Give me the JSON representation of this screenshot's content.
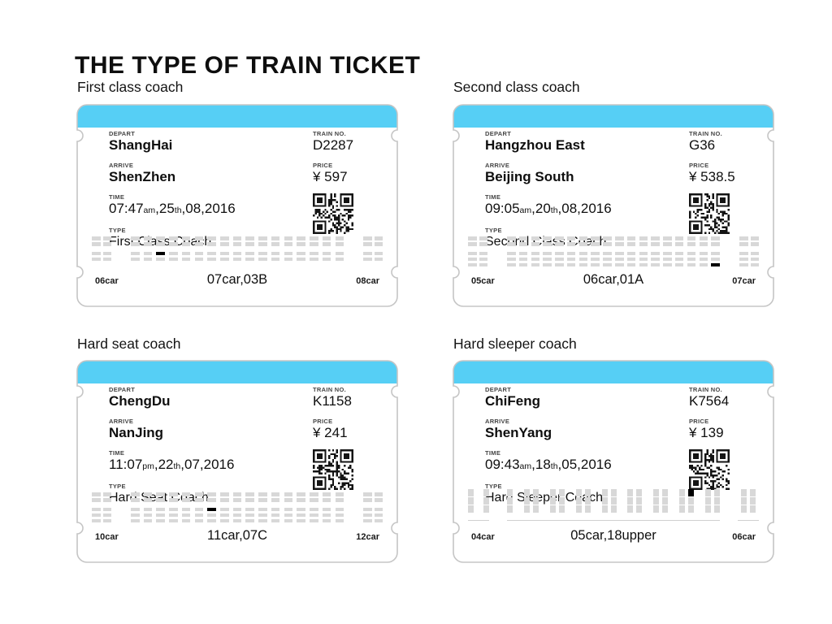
{
  "page_title": "THE TYPE OF TRAIN TICKET",
  "colors": {
    "header_blue": "#56cff5",
    "ticket_border": "#c5c5c5",
    "seat_gray": "#d8d8d8",
    "seat_selected": "#000000"
  },
  "field_labels": {
    "depart": "DEPART",
    "arrive": "ARRIVE",
    "time": "TIME",
    "type": "TYPE",
    "train_no": "TRAIN NO.",
    "price": "PRICE"
  },
  "tickets": [
    {
      "section_label": "First class coach",
      "depart": "ShangHai",
      "arrive": "ShenZhen",
      "train_no": "D2287",
      "price": "¥ 597",
      "type": "First Class Coach",
      "time_segments": [
        {
          "t": "07:47",
          "small": false
        },
        {
          "t": "am",
          "small": true
        },
        {
          "t": ",25",
          "small": false
        },
        {
          "t": "th",
          "small": true
        },
        {
          "t": ",08,2016",
          "small": false
        }
      ],
      "car_left": "06car",
      "car_center": "07car,03B",
      "car_right": "08car",
      "seatmap": {
        "kind": "seats",
        "top_rows": 2,
        "bottom_rows": 2,
        "main_cols": 17,
        "side_cols": 2,
        "selected": {
          "area": "bottom",
          "row": 0,
          "col": 2
        }
      }
    },
    {
      "section_label": "Second class coach",
      "depart": "Hangzhou East",
      "arrive": "Beijing South",
      "train_no": "G36",
      "price": "¥ 538.5",
      "type": "Second Class Coach",
      "time_segments": [
        {
          "t": "09:05",
          "small": false
        },
        {
          "t": "am",
          "small": true
        },
        {
          "t": ",20",
          "small": false
        },
        {
          "t": "th",
          "small": true
        },
        {
          "t": ",08,2016",
          "small": false
        }
      ],
      "car_left": "05car",
      "car_center": "06car,01A",
      "car_right": "07car",
      "seatmap": {
        "kind": "seats",
        "top_rows": 2,
        "bottom_rows": 3,
        "main_cols": 18,
        "side_cols": 2,
        "selected": {
          "area": "bottom",
          "row": 2,
          "col": 17
        }
      }
    },
    {
      "section_label": "Hard seat coach",
      "depart": "ChengDu",
      "arrive": "NanJing",
      "train_no": "K1158",
      "price": "¥ 241",
      "type": "Hard Seat Coach",
      "time_segments": [
        {
          "t": "11:07",
          "small": false
        },
        {
          "t": "pm",
          "small": true
        },
        {
          "t": ",22",
          "small": false
        },
        {
          "t": "th",
          "small": true
        },
        {
          "t": ",07,2016",
          "small": false
        }
      ],
      "car_left": "10car",
      "car_center": "11car,07C",
      "car_right": "12car",
      "seatmap": {
        "kind": "seats",
        "top_rows": 2,
        "bottom_rows": 3,
        "main_cols": 17,
        "side_cols": 2,
        "selected": {
          "area": "bottom",
          "row": 0,
          "col": 6
        }
      }
    },
    {
      "section_label": "Hard sleeper coach",
      "depart": "ChiFeng",
      "arrive": "ShenYang",
      "train_no": "K7564",
      "price": "¥ 139",
      "type": "Hard Sleeper Coach",
      "time_segments": [
        {
          "t": "09:43",
          "small": false
        },
        {
          "t": "am",
          "small": true
        },
        {
          "t": ",18",
          "small": false
        },
        {
          "t": "th",
          "small": true
        },
        {
          "t": ",05,2016",
          "small": false
        }
      ],
      "car_left": "04car",
      "car_center": "05car,18upper",
      "car_right": "06car",
      "seatmap": {
        "kind": "sleeper",
        "main_groups": [
          1,
          2,
          2,
          2,
          2,
          2,
          2,
          2,
          2
        ],
        "side_singles": 2,
        "right_pair": 2,
        "selected": {
          "col": 14,
          "level": 0
        }
      }
    }
  ]
}
